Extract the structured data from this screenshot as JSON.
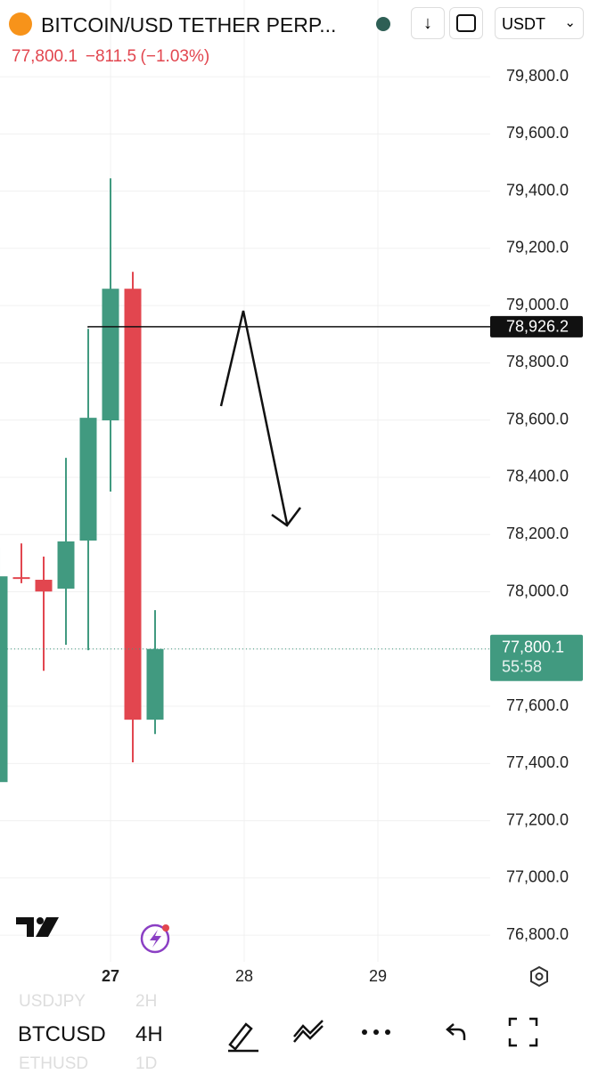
{
  "header": {
    "symbol": "BITCOIN/USD TETHER PERP...",
    "change": "−811.5",
    "change_pct": "(−1.03%)",
    "currency": "USDT"
  },
  "chart_data": {
    "type": "candlestick",
    "x": [
      26.1667,
      26.3333,
      26.5,
      26.6667,
      26.8333,
      27,
      27.1667,
      27.3333
    ],
    "open": [
      77335,
      78051,
      78042,
      78011,
      78179,
      78599,
      79059,
      77553
    ],
    "high": [
      78154,
      78169,
      78123,
      78468,
      78919,
      79445,
      79118,
      77936
    ],
    "low": [
      77330,
      78030,
      77724,
      77815,
      77796,
      78350,
      77404,
      77503
    ],
    "close": [
      78054,
      78045,
      78001,
      78176,
      78608,
      79059,
      77553,
      77800.1
    ],
    "up_color": "#419a80",
    "down_color": "#e2464f",
    "xlim": [
      26.1733,
      29.84
    ],
    "xticks": [
      27,
      28,
      29
    ],
    "ylim": [
      76707,
      80068
    ],
    "yticks": [
      {
        "value": 76800,
        "label": "76,800.0"
      },
      {
        "value": 77000,
        "label": "77,000.0"
      },
      {
        "value": 77200,
        "label": "77,200.0"
      },
      {
        "value": 77400,
        "label": "77,400.0"
      },
      {
        "value": 77600,
        "label": "77,600.0"
      },
      {
        "value": 77800,
        "label": "77,800.0"
      },
      {
        "value": 78000,
        "label": "78,000.0"
      },
      {
        "value": 78200,
        "label": "78,200.0"
      },
      {
        "value": 78400,
        "label": "78,400.0"
      },
      {
        "value": 78600,
        "label": "78,600.0"
      },
      {
        "value": 78800,
        "label": "78,800.0"
      },
      {
        "value": 79000,
        "label": "79,000.0"
      },
      {
        "value": 79200,
        "label": "79,200.0"
      },
      {
        "value": 79400,
        "label": "79,400.0"
      },
      {
        "value": 79600,
        "label": "79,600.0"
      },
      {
        "value": 79800,
        "label": "79,800.0"
      }
    ],
    "grid": true,
    "level_line": {
      "value": 78926.2,
      "label": "78,926.2",
      "start_x": 26.8333
    },
    "price_line": {
      "value": 77800.1,
      "label": "77,800.1",
      "countdown": "55:58"
    }
  },
  "toolbar": {
    "symbol": "BTCUSD",
    "interval": "4H",
    "prev_symbol": "USDJPY",
    "prev_interval": "2H",
    "next_symbol": "ETHUSD",
    "next_interval": "1D"
  }
}
